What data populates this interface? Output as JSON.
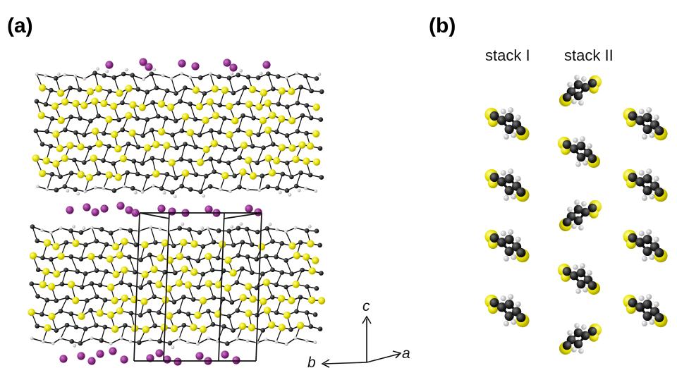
{
  "figure": {
    "panel_a_label": "(a)",
    "panel_b_label": "(b)",
    "stack_labels": [
      "stack I",
      "stack II"
    ],
    "axis_labels": {
      "c": "c",
      "b": "b",
      "a": "a"
    },
    "colors": {
      "sulfur": "#e6e000",
      "carbon": "#1c1c1c",
      "hydrogen": "#d8d8d8",
      "cation": "#8a2a86",
      "bond": "#111111",
      "cell_edge": "#000000"
    }
  }
}
